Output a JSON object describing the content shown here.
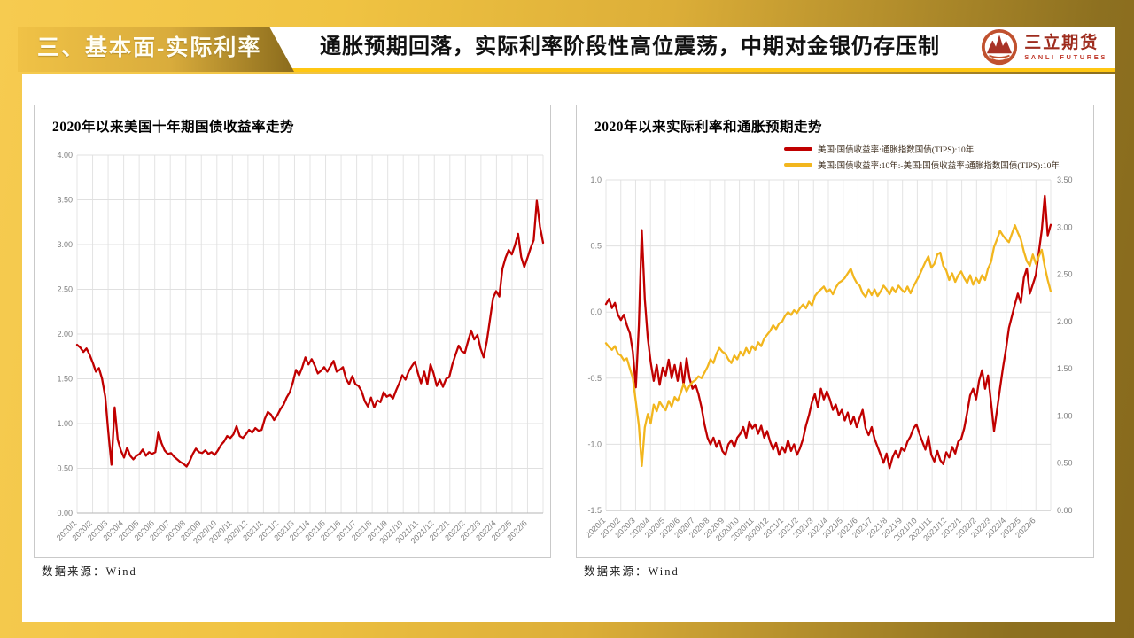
{
  "header": {
    "section_label": "三、基本面-实际利率",
    "headline": "通胀预期回落，实际利率阶段性高位震荡，中期对金银仍存压制",
    "logo": {
      "name_cn": "三立期货",
      "name_en": "SANLI FUTURES"
    },
    "colors": {
      "bright_yellow": "#F6CB50",
      "dark_gold": "#8D7020",
      "underline_yellow": "#FFC713",
      "logo_red": "#C0512F",
      "logo_text_red": "#9E2C1E"
    }
  },
  "chart_data": [
    {
      "type": "line",
      "title": "2020年以来美国十年期国债收益率走势",
      "source": "数据来源：Wind",
      "ylim": [
        0,
        4.0
      ],
      "y_ticks": [
        "4.00",
        "3.50",
        "3.00",
        "2.50",
        "2.00",
        "1.50",
        "1.00",
        "0.50",
        "0.00"
      ],
      "grid": true,
      "legend_position": "none",
      "x_labels": [
        "2020/1",
        "2020/2",
        "2020/3",
        "2020/4",
        "2020/5",
        "2020/6",
        "2020/7",
        "2020/8",
        "2020/9",
        "2020/10",
        "2020/11",
        "2020/12",
        "2021/1",
        "2021/2",
        "2021/3",
        "2021/4",
        "2021/5",
        "2021/6",
        "2021/7",
        "2021/8",
        "2021/9",
        "2021/10",
        "2021/11",
        "2021/12",
        "2022/1",
        "2022/2",
        "2022/3",
        "2022/4",
        "2022/5",
        "2022/6"
      ],
      "series": [
        {
          "color": "#C00000",
          "axis": "left",
          "values": [
            1.88,
            1.85,
            1.8,
            1.84,
            1.77,
            1.68,
            1.58,
            1.62,
            1.5,
            1.3,
            0.9,
            0.54,
            1.18,
            0.82,
            0.7,
            0.62,
            0.73,
            0.64,
            0.6,
            0.64,
            0.66,
            0.71,
            0.64,
            0.68,
            0.66,
            0.68,
            0.91,
            0.78,
            0.7,
            0.66,
            0.67,
            0.63,
            0.6,
            0.57,
            0.55,
            0.52,
            0.58,
            0.66,
            0.72,
            0.68,
            0.67,
            0.7,
            0.66,
            0.68,
            0.65,
            0.7,
            0.76,
            0.8,
            0.86,
            0.84,
            0.88,
            0.97,
            0.86,
            0.84,
            0.88,
            0.93,
            0.9,
            0.95,
            0.92,
            0.93,
            1.05,
            1.13,
            1.1,
            1.04,
            1.09,
            1.16,
            1.21,
            1.29,
            1.35,
            1.46,
            1.6,
            1.54,
            1.63,
            1.74,
            1.66,
            1.72,
            1.65,
            1.56,
            1.59,
            1.63,
            1.58,
            1.64,
            1.7,
            1.58,
            1.6,
            1.63,
            1.5,
            1.44,
            1.53,
            1.44,
            1.42,
            1.36,
            1.25,
            1.19,
            1.29,
            1.18,
            1.26,
            1.24,
            1.35,
            1.3,
            1.32,
            1.28,
            1.37,
            1.45,
            1.54,
            1.49,
            1.58,
            1.64,
            1.69,
            1.56,
            1.45,
            1.58,
            1.44,
            1.66,
            1.56,
            1.42,
            1.49,
            1.41,
            1.5,
            1.52,
            1.66,
            1.77,
            1.87,
            1.81,
            1.79,
            1.92,
            2.04,
            1.94,
            1.99,
            1.84,
            1.74,
            1.92,
            2.16,
            2.4,
            2.48,
            2.42,
            2.73,
            2.85,
            2.94,
            2.89,
            2.99,
            3.12,
            2.86,
            2.75,
            2.85,
            2.96,
            3.05,
            3.49,
            3.2,
            3.02
          ]
        }
      ]
    },
    {
      "type": "line",
      "title": "2020年以来实际利率和通胀预期走势",
      "source": "数据来源：Wind",
      "left_ylim": [
        -1.5,
        1.0
      ],
      "left_ticks": [
        "1.0",
        "0.5",
        "0.0",
        "-0.5",
        "-1.0",
        "-1.5"
      ],
      "right_ylim": [
        0,
        3.5
      ],
      "right_ticks": [
        "3.50",
        "3.00",
        "2.50",
        "2.00",
        "1.50",
        "1.00",
        "0.50",
        "0.00"
      ],
      "grid": true,
      "legend_position": "top-right",
      "x_labels": [
        "2020/1",
        "2020/2",
        "2020/3",
        "2020/4",
        "2020/5",
        "2020/6",
        "2020/7",
        "2020/8",
        "2020/9",
        "2020/10",
        "2020/11",
        "2020/12",
        "2021/1",
        "2021/2",
        "2021/3",
        "2021/4",
        "2021/5",
        "2021/6",
        "2021/7",
        "2021/8",
        "2021/9",
        "2021/10",
        "2021/11",
        "2021/12",
        "2022/1",
        "2022/2",
        "2022/3",
        "2022/4",
        "2022/5",
        "2022/6"
      ],
      "series": [
        {
          "name": "美国:国债收益率:通胀指数国债(TIPS):10年",
          "color": "#C00000",
          "axis": "left",
          "values": [
            0.06,
            0.1,
            0.03,
            0.07,
            -0.02,
            -0.06,
            -0.02,
            -0.1,
            -0.16,
            -0.3,
            -0.57,
            -0.1,
            0.62,
            0.1,
            -0.2,
            -0.38,
            -0.52,
            -0.4,
            -0.55,
            -0.42,
            -0.48,
            -0.36,
            -0.5,
            -0.4,
            -0.52,
            -0.38,
            -0.55,
            -0.35,
            -0.5,
            -0.58,
            -0.55,
            -0.62,
            -0.72,
            -0.85,
            -0.95,
            -1.0,
            -0.95,
            -1.02,
            -0.97,
            -1.05,
            -1.08,
            -1.0,
            -0.97,
            -1.02,
            -0.95,
            -0.92,
            -0.87,
            -0.95,
            -0.83,
            -0.88,
            -0.85,
            -0.92,
            -0.86,
            -0.95,
            -0.9,
            -0.98,
            -1.04,
            -0.99,
            -1.08,
            -1.02,
            -1.06,
            -0.97,
            -1.05,
            -1.0,
            -1.08,
            -1.03,
            -0.96,
            -0.86,
            -0.78,
            -0.68,
            -0.62,
            -0.72,
            -0.58,
            -0.66,
            -0.6,
            -0.66,
            -0.74,
            -0.7,
            -0.78,
            -0.74,
            -0.82,
            -0.76,
            -0.85,
            -0.79,
            -0.87,
            -0.8,
            -0.74,
            -0.88,
            -0.93,
            -0.87,
            -0.96,
            -1.02,
            -1.08,
            -1.14,
            -1.07,
            -1.18,
            -1.1,
            -1.05,
            -1.1,
            -1.03,
            -1.05,
            -0.98,
            -0.94,
            -0.88,
            -0.85,
            -0.92,
            -0.98,
            -1.04,
            -0.94,
            -1.08,
            -1.13,
            -1.05,
            -1.12,
            -1.15,
            -1.06,
            -1.1,
            -1.02,
            -1.07,
            -0.98,
            -0.96,
            -0.88,
            -0.76,
            -0.63,
            -0.58,
            -0.66,
            -0.52,
            -0.44,
            -0.58,
            -0.48,
            -0.68,
            -0.9,
            -0.74,
            -0.58,
            -0.42,
            -0.28,
            -0.12,
            -0.03,
            0.06,
            0.14,
            0.07,
            0.26,
            0.33,
            0.14,
            0.21,
            0.28,
            0.45,
            0.62,
            0.88,
            0.58,
            0.66
          ]
        },
        {
          "name": "美国:国债收益率:10年:-美国:国债收益率:通胀指数国债(TIPS):10年",
          "color": "#F2B61E",
          "axis": "right",
          "values": [
            1.77,
            1.73,
            1.7,
            1.74,
            1.66,
            1.64,
            1.59,
            1.61,
            1.5,
            1.4,
            1.15,
            0.9,
            0.47,
            0.88,
            1.02,
            0.92,
            1.12,
            1.05,
            1.15,
            1.1,
            1.06,
            1.16,
            1.1,
            1.2,
            1.16,
            1.24,
            1.34,
            1.26,
            1.32,
            1.36,
            1.38,
            1.42,
            1.4,
            1.46,
            1.52,
            1.6,
            1.56,
            1.66,
            1.72,
            1.68,
            1.66,
            1.6,
            1.56,
            1.64,
            1.6,
            1.68,
            1.64,
            1.72,
            1.66,
            1.74,
            1.7,
            1.78,
            1.74,
            1.82,
            1.86,
            1.9,
            1.96,
            1.92,
            1.98,
            2.0,
            2.06,
            2.1,
            2.07,
            2.12,
            2.09,
            2.14,
            2.18,
            2.14,
            2.21,
            2.17,
            2.27,
            2.31,
            2.34,
            2.37,
            2.31,
            2.34,
            2.29,
            2.36,
            2.41,
            2.43,
            2.46,
            2.51,
            2.56,
            2.47,
            2.41,
            2.38,
            2.3,
            2.26,
            2.34,
            2.28,
            2.34,
            2.27,
            2.32,
            2.38,
            2.34,
            2.29,
            2.36,
            2.31,
            2.38,
            2.34,
            2.31,
            2.37,
            2.3,
            2.37,
            2.43,
            2.49,
            2.56,
            2.63,
            2.69,
            2.57,
            2.61,
            2.71,
            2.73,
            2.59,
            2.54,
            2.44,
            2.51,
            2.42,
            2.49,
            2.53,
            2.46,
            2.41,
            2.49,
            2.39,
            2.46,
            2.41,
            2.49,
            2.44,
            2.56,
            2.63,
            2.79,
            2.87,
            2.96,
            2.91,
            2.87,
            2.84,
            2.93,
            3.02,
            2.94,
            2.87,
            2.74,
            2.64,
            2.59,
            2.71,
            2.61,
            2.69,
            2.76,
            2.58,
            2.44,
            2.32
          ]
        }
      ]
    }
  ]
}
